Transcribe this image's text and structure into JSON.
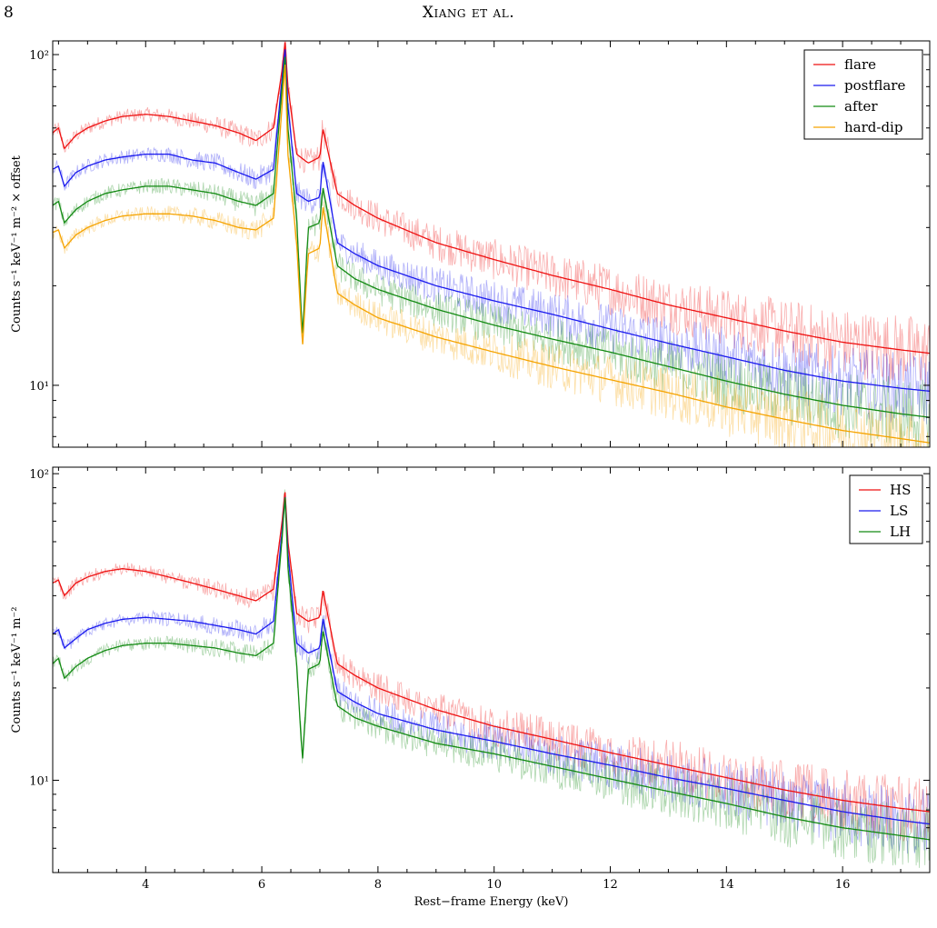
{
  "page": {
    "number": "8",
    "running_head": "Xiang et al."
  },
  "chart_data": [
    {
      "type": "line",
      "yscale": "log",
      "xlim": [
        2.4,
        17.5
      ],
      "ylim": [
        6.5,
        110
      ],
      "ylabel": "Counts s⁻¹ keV⁻¹ m⁻² × offset",
      "xlabel": "",
      "y_tick_labels": [
        {
          "value": 10,
          "label": "10¹"
        },
        {
          "value": 100,
          "label": "10²"
        }
      ],
      "legend_position": "top-right",
      "series": [
        {
          "name": "flare",
          "color": "#ee1111",
          "x": [
            2.4,
            2.5,
            2.6,
            2.8,
            3.0,
            3.3,
            3.6,
            4.0,
            4.4,
            4.8,
            5.2,
            5.6,
            5.9,
            6.2,
            6.35,
            6.4,
            6.45,
            6.6,
            6.8,
            7.0,
            7.05,
            7.3,
            7.6,
            8.0,
            9.0,
            10.0,
            11.0,
            12.0,
            13.0,
            14.0,
            15.0,
            16.0,
            17.0,
            17.5
          ],
          "y": [
            58,
            60,
            52,
            57,
            60,
            63,
            65,
            66,
            65,
            63,
            61,
            58,
            55,
            60,
            90,
            110,
            80,
            50,
            47,
            49,
            60,
            38,
            35,
            32,
            27,
            24,
            21.5,
            19.5,
            17.5,
            16,
            14.6,
            13.5,
            12.8,
            12.5
          ]
        },
        {
          "name": "postflare",
          "color": "#1a1aee",
          "x": [
            2.4,
            2.5,
            2.6,
            2.8,
            3.0,
            3.3,
            3.6,
            4.0,
            4.4,
            4.8,
            5.2,
            5.6,
            5.9,
            6.2,
            6.35,
            6.4,
            6.45,
            6.6,
            6.8,
            7.0,
            7.05,
            7.3,
            7.6,
            8.0,
            9.0,
            10.0,
            11.0,
            12.0,
            13.0,
            14.0,
            15.0,
            16.0,
            17.0,
            17.5
          ],
          "y": [
            45,
            46,
            40,
            44,
            46,
            48,
            49,
            50,
            50,
            48,
            47,
            44,
            42,
            45,
            85,
            105,
            70,
            38,
            36,
            37,
            48,
            27,
            25,
            23,
            20,
            18,
            16.4,
            14.8,
            13.4,
            12.2,
            11.1,
            10.3,
            9.8,
            9.6
          ]
        },
        {
          "name": "after",
          "color": "#138a13",
          "x": [
            2.4,
            2.5,
            2.6,
            2.8,
            3.0,
            3.3,
            3.6,
            4.0,
            4.4,
            4.8,
            5.2,
            5.6,
            5.9,
            6.2,
            6.35,
            6.4,
            6.45,
            6.6,
            6.7,
            6.8,
            7.0,
            7.05,
            7.3,
            7.6,
            8.0,
            9.0,
            10.0,
            11.0,
            12.0,
            13.0,
            14.0,
            15.0,
            16.0,
            17.0,
            17.5
          ],
          "y": [
            35,
            36,
            31,
            34,
            36,
            38,
            39,
            40,
            40,
            39,
            38,
            36,
            35,
            38,
            80,
            100,
            60,
            32,
            14,
            30,
            31,
            40,
            23,
            21,
            19.5,
            17,
            15.2,
            13.8,
            12.6,
            11.4,
            10.3,
            9.4,
            8.7,
            8.2,
            8.0
          ]
        },
        {
          "name": "hard-dip",
          "color": "#f5a300",
          "x": [
            2.4,
            2.5,
            2.6,
            2.8,
            3.0,
            3.3,
            3.6,
            4.0,
            4.4,
            4.8,
            5.2,
            5.6,
            5.9,
            6.2,
            6.35,
            6.4,
            6.45,
            6.6,
            6.7,
            6.8,
            7.0,
            7.05,
            7.3,
            7.6,
            8.0,
            9.0,
            10.0,
            11.0,
            12.0,
            13.0,
            14.0,
            15.0,
            16.0,
            17.0,
            17.5
          ],
          "y": [
            29,
            29.5,
            26,
            28.5,
            30,
            31.5,
            32.5,
            33,
            33,
            32.5,
            31.5,
            30,
            29.5,
            32,
            70,
            95,
            50,
            27,
            13,
            25,
            26,
            35,
            19,
            17.5,
            16,
            14,
            12.6,
            11.4,
            10.4,
            9.5,
            8.6,
            7.9,
            7.3,
            6.9,
            6.7
          ]
        }
      ]
    },
    {
      "type": "line",
      "yscale": "log",
      "xlim": [
        2.4,
        17.5
      ],
      "ylim": [
        5.0,
        105
      ],
      "ylabel": "Counts s⁻¹ keV⁻¹ m⁻²",
      "xlabel": "Rest−frame Energy (keV)",
      "x_ticks": [
        4,
        6,
        8,
        10,
        12,
        14,
        16
      ],
      "y_tick_labels": [
        {
          "value": 10,
          "label": "10¹"
        },
        {
          "value": 100,
          "label": "10²"
        }
      ],
      "legend_position": "top-right",
      "series": [
        {
          "name": "HS",
          "color": "#ee1111",
          "x": [
            2.4,
            2.5,
            2.6,
            2.8,
            3.0,
            3.3,
            3.6,
            4.0,
            4.4,
            4.8,
            5.2,
            5.6,
            5.9,
            6.2,
            6.35,
            6.4,
            6.45,
            6.6,
            6.8,
            7.0,
            7.05,
            7.3,
            7.6,
            8.0,
            9.0,
            10.0,
            11.0,
            12.0,
            13.0,
            14.0,
            15.0,
            16.0,
            17.0,
            17.5
          ],
          "y": [
            44,
            45,
            40,
            44,
            46,
            48,
            49,
            48,
            46,
            44,
            42,
            40,
            38.5,
            42,
            70,
            88,
            60,
            35,
            33,
            34,
            42,
            24,
            22,
            20,
            17,
            15,
            13.6,
            12.3,
            11.2,
            10.2,
            9.3,
            8.6,
            8.1,
            7.9
          ]
        },
        {
          "name": "LS",
          "color": "#1a1aee",
          "x": [
            2.4,
            2.5,
            2.6,
            2.8,
            3.0,
            3.3,
            3.6,
            4.0,
            4.4,
            4.8,
            5.2,
            5.6,
            5.9,
            6.2,
            6.35,
            6.4,
            6.45,
            6.6,
            6.8,
            7.0,
            7.05,
            7.3,
            7.6,
            8.0,
            9.0,
            10.0,
            11.0,
            12.0,
            13.0,
            14.0,
            15.0,
            16.0,
            17.0,
            17.5
          ],
          "y": [
            30,
            31,
            27,
            29,
            31,
            32.5,
            33.5,
            34,
            33.5,
            33,
            32,
            31,
            30,
            33,
            65,
            85,
            55,
            28,
            26,
            27,
            34,
            19.5,
            18,
            16.5,
            14.6,
            13.4,
            12.2,
            11.2,
            10.2,
            9.4,
            8.6,
            7.9,
            7.4,
            7.2
          ]
        },
        {
          "name": "LH",
          "color": "#138a13",
          "x": [
            2.4,
            2.5,
            2.6,
            2.8,
            3.0,
            3.3,
            3.6,
            4.0,
            4.4,
            4.8,
            5.2,
            5.6,
            5.9,
            6.2,
            6.35,
            6.4,
            6.45,
            6.6,
            6.7,
            6.8,
            7.0,
            7.05,
            7.3,
            7.6,
            8.0,
            9.0,
            10.0,
            11.0,
            12.0,
            13.0,
            14.0,
            15.0,
            16.0,
            17.0,
            17.5
          ],
          "y": [
            24,
            25,
            21.5,
            23.5,
            25,
            26.5,
            27.5,
            28,
            28,
            27.5,
            27,
            26,
            25.5,
            28,
            62,
            85,
            50,
            24,
            11.5,
            23,
            24,
            31,
            17.5,
            16,
            15,
            13.2,
            12.2,
            11.1,
            10.1,
            9.2,
            8.4,
            7.6,
            7.0,
            6.6,
            6.4
          ]
        }
      ]
    }
  ]
}
